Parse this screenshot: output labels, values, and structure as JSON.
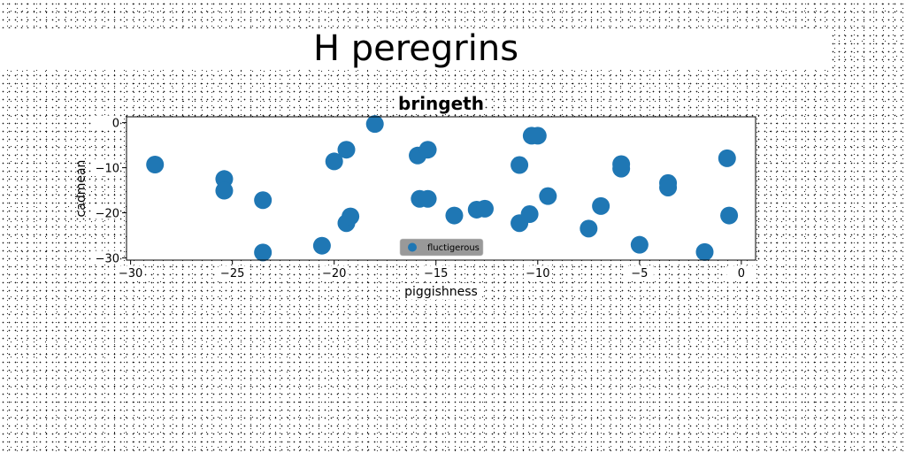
{
  "figure": {
    "suptitle": "H peregrins"
  },
  "chart_data": {
    "type": "scatter",
    "title": "bringeth",
    "xlabel": "piggishness",
    "ylabel": "cadmean",
    "xlim": [
      -30.2,
      0.7
    ],
    "ylim": [
      -30.5,
      1.3
    ],
    "xticks": [
      -30,
      -25,
      -20,
      -15,
      -10,
      -5,
      0
    ],
    "xtick_labels": [
      "−30",
      "−25",
      "−20",
      "−15",
      "−10",
      "−5",
      "0"
    ],
    "yticks": [
      0,
      -10,
      -20,
      -30
    ],
    "ytick_labels": [
      "0",
      "−10",
      "−20",
      "−30"
    ],
    "grid": false,
    "legend_position": "bottom-center",
    "colors": {
      "series": "#1f77b4",
      "legend_bg": "#999999"
    },
    "series": [
      {
        "name": "fluctigerous",
        "x": [
          -28.8,
          -25.4,
          -25.4,
          -23.5,
          -23.5,
          -20.6,
          -20.0,
          -19.4,
          -19.4,
          -19.2,
          -18.0,
          -15.9,
          -15.8,
          -15.4,
          -15.4,
          -14.1,
          -13.0,
          -12.6,
          -10.9,
          -10.9,
          -10.4,
          -10.3,
          -10.0,
          -9.5,
          -7.5,
          -6.9,
          -5.9,
          -5.9,
          -5.0,
          -3.6,
          -3.6,
          -1.8,
          -0.7,
          -0.6
        ],
        "y": [
          -9.3,
          -12.5,
          -15.1,
          -17.2,
          -28.8,
          -27.3,
          -8.6,
          -6.0,
          -22.3,
          -20.8,
          -0.3,
          -7.3,
          -16.9,
          -6.0,
          -16.9,
          -20.6,
          -19.3,
          -19.1,
          -9.4,
          -22.3,
          -20.3,
          -2.9,
          -2.9,
          -16.3,
          -23.5,
          -18.5,
          -9.2,
          -10.2,
          -27.1,
          -13.4,
          -14.4,
          -28.7,
          -7.9,
          -20.6
        ]
      }
    ]
  }
}
